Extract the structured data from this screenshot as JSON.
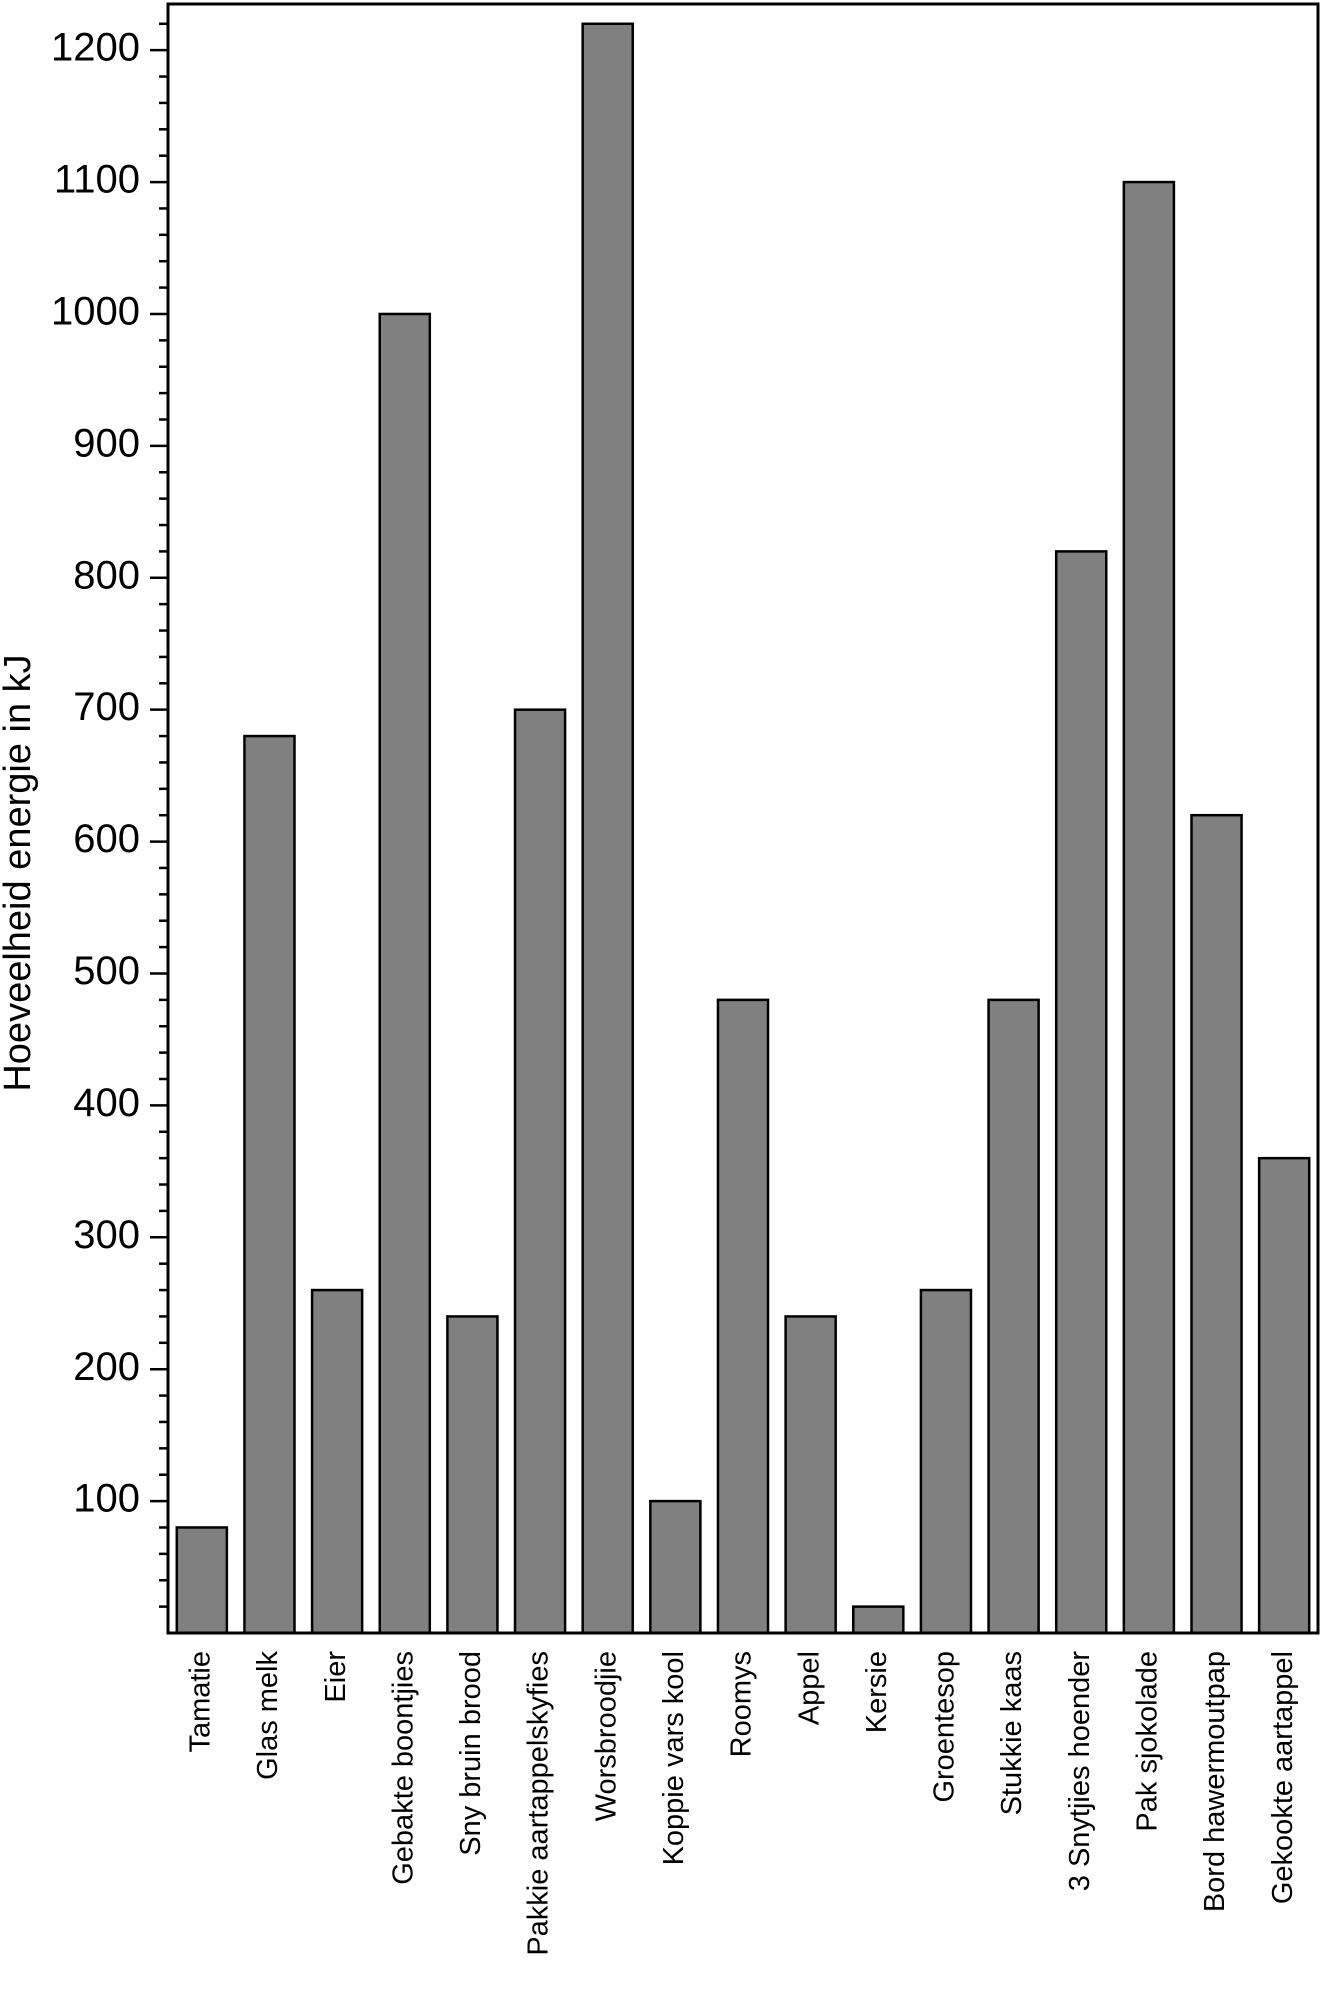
{
  "chart_data": {
    "type": "bar",
    "ylabel": "Hoeveelheid energie in kJ",
    "categories": [
      "Tamatie",
      "Glas melk",
      "Eier",
      "Gebakte boontjies",
      "Sny bruin brood",
      "Pakkie aartappelskyfies",
      "Worsbroodjie",
      "Koppie vars kool",
      "Roomys",
      "Appel",
      "Kersie",
      "Groentesop",
      "Stukkie kaas",
      "3 Snytjies hoender",
      "Pak sjokolade",
      "Bord hawermoutpap",
      "Gekookte aartappel"
    ],
    "values": [
      80,
      680,
      260,
      1000,
      240,
      700,
      1220,
      100,
      480,
      240,
      20,
      260,
      480,
      820,
      1100,
      620,
      360
    ],
    "color": "#808080",
    "ylim": [
      0,
      1235
    ],
    "yticks": [
      100,
      200,
      300,
      400,
      500,
      600,
      700,
      800,
      900,
      1000,
      1100,
      1200
    ],
    "yminorticks": [
      20,
      40,
      60,
      80,
      120,
      140,
      160,
      180,
      220,
      240,
      260,
      280,
      320,
      340,
      360,
      380,
      420,
      440,
      460,
      480,
      520,
      540,
      560,
      580,
      620,
      640,
      660,
      680,
      720,
      740,
      760,
      780,
      820,
      840,
      860,
      880,
      920,
      940,
      960,
      980,
      1020,
      1040,
      1060,
      1080,
      1120,
      1140,
      1160,
      1180,
      1220
    ]
  }
}
